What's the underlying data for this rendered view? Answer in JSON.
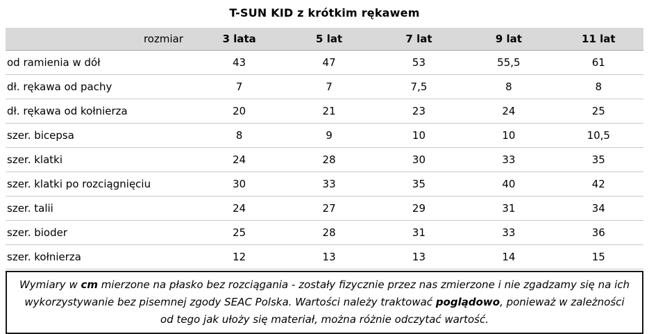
{
  "title": "T-SUN KID z krótkim rękawem",
  "table": {
    "header": {
      "label": "rozmiar",
      "sizes": [
        "3 lata",
        "5 lat",
        "7 lat",
        "9 lat",
        "11 lat"
      ]
    },
    "rows": [
      {
        "label": "od ramienia w dół",
        "values": [
          "43",
          "47",
          "53",
          "55,5",
          "61"
        ]
      },
      {
        "label": "dł. rękawa od pachy",
        "values": [
          "7",
          "7",
          "7,5",
          "8",
          "8"
        ]
      },
      {
        "label": "dł. rękawa od kołnierza",
        "values": [
          "20",
          "21",
          "23",
          "24",
          "25"
        ]
      },
      {
        "label": "szer. bicepsa",
        "values": [
          "8",
          "9",
          "10",
          "10",
          "10,5"
        ]
      },
      {
        "label": "szer. klatki",
        "values": [
          "24",
          "28",
          "30",
          "33",
          "35"
        ]
      },
      {
        "label": "szer. klatki po rozciągnięciu",
        "values": [
          "30",
          "33",
          "35",
          "40",
          "42"
        ]
      },
      {
        "label": "szer. talii",
        "values": [
          "24",
          "27",
          "29",
          "31",
          "34"
        ]
      },
      {
        "label": "szer. bioder",
        "values": [
          "25",
          "28",
          "31",
          "33",
          "36"
        ]
      },
      {
        "label": "szer. kołnierza",
        "values": [
          "12",
          "13",
          "13",
          "14",
          "15"
        ]
      }
    ]
  },
  "disclaimer": {
    "part1": "Wymiary w ",
    "bold1": "cm",
    "part2": " mierzone na płasko bez rozciągania - zostały fizycznie przez nas zmierzone i nie zgadzamy się na ich wykorzystywanie bez pisemnej zgody SEAC Polska. Wartości należy traktować ",
    "bold2": "poglądowo",
    "part3": ", ponieważ w zależności od tego jak ułoży się materiał, można różnie odczytać wartość."
  },
  "colors": {
    "header_bg": "#d9d9d9",
    "row_separator": "#c9c9c9",
    "header_separator": "#a8a8a8",
    "disclaimer_border": "#161616",
    "text": "#000000",
    "background": "#ffffff"
  }
}
